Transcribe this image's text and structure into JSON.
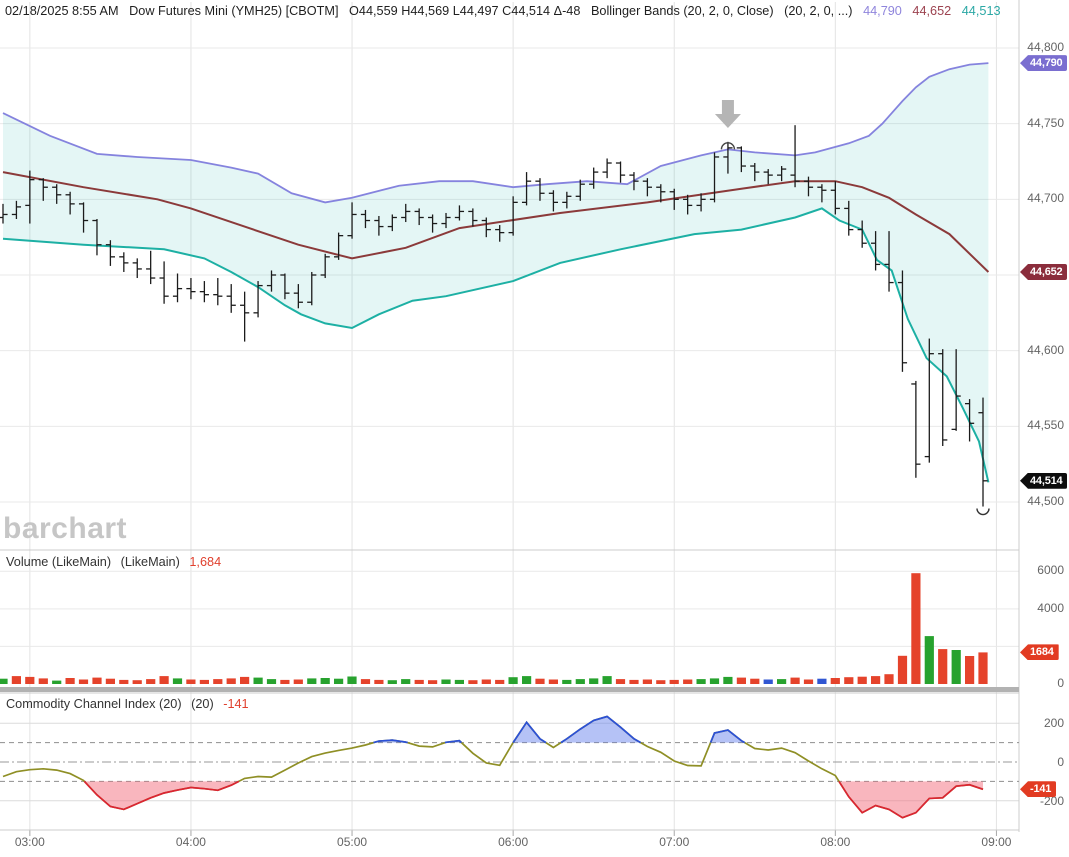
{
  "header": {
    "datetime": "02/18/2025 8:55 AM",
    "symbol_title": "Dow Futures Mini (YMH25) [CBOTM]",
    "ohlc_summary": "O44,559 H44,569 L44,497 C44,514 Δ-48",
    "indicator_name": "Bollinger Bands (20, 2, 0, Close)",
    "indicator_params": "(20, 2, 0, ...)",
    "band_value_upper": "44,790",
    "band_value_middle": "44,652",
    "band_value_lower": "44,513"
  },
  "watermark": "barchart",
  "volume_panel": {
    "label": "Volume (LikeMain)",
    "label2": "(LikeMain)",
    "value": "1,684"
  },
  "cci_panel": {
    "label": "Commodity Channel Index (20)",
    "label2": "(20)",
    "value": "-141"
  },
  "axes": {
    "price_labels": [
      {
        "text": "44,800",
        "value": 44800
      },
      {
        "text": "44,750",
        "value": 44750
      },
      {
        "text": "44,700",
        "value": 44700
      },
      {
        "text": "44,600",
        "value": 44600
      },
      {
        "text": "44,550",
        "value": 44550
      },
      {
        "text": "44,500",
        "value": 44500
      }
    ],
    "volume_labels": [
      {
        "text": "6000",
        "value": 6000
      },
      {
        "text": "4000",
        "value": 4000
      },
      {
        "text": "0",
        "value": 0
      }
    ],
    "cci_labels": [
      {
        "text": "200",
        "value": 200
      },
      {
        "text": "0",
        "value": 0
      },
      {
        "text": "-200",
        "value": -200
      }
    ],
    "time_labels": [
      "03:00",
      "04:00",
      "05:00",
      "06:00",
      "07:00",
      "08:00",
      "09:00"
    ]
  },
  "badges": [
    {
      "name": "bb-upper-badge",
      "text": "44,790",
      "bg": "#7a6ed0",
      "panel": "price",
      "value": 44790
    },
    {
      "name": "bb-middle-badge",
      "text": "44,652",
      "bg": "#8b2d3c",
      "panel": "price",
      "value": 44652
    },
    {
      "name": "last-price-badge",
      "text": "44,514",
      "bg": "#0d0d0d",
      "panel": "price",
      "value": 44514
    },
    {
      "name": "volume-badge",
      "text": "1684",
      "bg": "#e23b22",
      "panel": "vol",
      "value": 1684
    },
    {
      "name": "cci-badge",
      "text": "-141",
      "bg": "#e23b22",
      "panel": "cci",
      "value": -141
    }
  ],
  "chart_data": {
    "type": "bar",
    "subtype": "ohlc-multi-panel",
    "title": "Dow Futures Mini (YMH25) [CBOTM] 5-minute bars with Bollinger Bands (20,2,0), Volume, CCI(20)",
    "time_start": "02:50",
    "interval_minutes": 5,
    "price_axis_range": [
      44480,
      44815
    ],
    "price_gridlines": [
      44800,
      44750,
      44700,
      44650,
      44600,
      44550,
      44500
    ],
    "volume_gridlines": [
      6000,
      4000,
      2000
    ],
    "ohlc": [
      [
        44688,
        44697,
        44684,
        44690
      ],
      [
        44690,
        44699,
        44687,
        44695
      ],
      [
        44696,
        44719,
        44684,
        44713
      ],
      [
        44713,
        44714,
        44699,
        44708
      ],
      [
        44708,
        44710,
        44697,
        44703
      ],
      [
        44703,
        44705,
        44690,
        44697
      ],
      [
        44697,
        44698,
        44678,
        44686
      ],
      [
        44686,
        44687,
        44663,
        44670
      ],
      [
        44670,
        44673,
        44656,
        44662
      ],
      [
        44662,
        44665,
        44652,
        44658
      ],
      [
        44658,
        44661,
        44648,
        44654
      ],
      [
        44654,
        44666,
        44644,
        44648
      ],
      [
        44648,
        44659,
        44631,
        44636
      ],
      [
        44636,
        44651,
        44632,
        44641
      ],
      [
        44641,
        44648,
        44634,
        44639
      ],
      [
        44639,
        44646,
        44632,
        44637
      ],
      [
        44637,
        44648,
        44630,
        44636
      ],
      [
        44636,
        44644,
        44625,
        44630
      ],
      [
        44630,
        44639,
        44606,
        44625
      ],
      [
        44625,
        44646,
        44622,
        44643
      ],
      [
        44643,
        44653,
        44639,
        44650
      ],
      [
        44650,
        44651,
        44634,
        44638
      ],
      [
        44638,
        44644,
        44628,
        44632
      ],
      [
        44632,
        44652,
        44630,
        44650
      ],
      [
        44650,
        44664,
        44648,
        44662
      ],
      [
        44662,
        44678,
        44660,
        44676
      ],
      [
        44676,
        44698,
        44674,
        44690
      ],
      [
        44690,
        44693,
        44681,
        44686
      ],
      [
        44686,
        44689,
        44676,
        44682
      ],
      [
        44682,
        44690,
        44679,
        44688
      ],
      [
        44688,
        44697,
        44685,
        44692
      ],
      [
        44692,
        44694,
        44683,
        44688
      ],
      [
        44688,
        44690,
        44678,
        44684
      ],
      [
        44684,
        44691,
        44681,
        44688
      ],
      [
        44688,
        44696,
        44686,
        44692
      ],
      [
        44692,
        44694,
        44682,
        44686
      ],
      [
        44686,
        44688,
        44675,
        44680
      ],
      [
        44680,
        44683,
        44672,
        44678
      ],
      [
        44678,
        44702,
        44676,
        44698
      ],
      [
        44698,
        44718,
        44696,
        44712
      ],
      [
        44712,
        44714,
        44699,
        44704
      ],
      [
        44704,
        44706,
        44692,
        44698
      ],
      [
        44698,
        44705,
        44694,
        44702
      ],
      [
        44702,
        44713,
        44699,
        44710
      ],
      [
        44710,
        44721,
        44707,
        44718
      ],
      [
        44718,
        44727,
        44714,
        44724
      ],
      [
        44724,
        44725,
        44711,
        44716
      ],
      [
        44716,
        44718,
        44706,
        44712
      ],
      [
        44712,
        44714,
        44702,
        44708
      ],
      [
        44708,
        44710,
        44698,
        44705
      ],
      [
        44705,
        44707,
        44693,
        44700
      ],
      [
        44700,
        44703,
        44690,
        44696
      ],
      [
        44696,
        44704,
        44692,
        44700
      ],
      [
        44700,
        44731,
        44698,
        44728
      ],
      [
        44728,
        44738,
        44717,
        44734
      ],
      [
        44734,
        44735,
        44718,
        44722
      ],
      [
        44722,
        44724,
        44712,
        44718
      ],
      [
        44718,
        44720,
        44710,
        44716
      ],
      [
        44716,
        44722,
        44712,
        44720
      ],
      [
        44716,
        44749,
        44708,
        44712
      ],
      [
        44712,
        44715,
        44702,
        44708
      ],
      [
        44708,
        44710,
        44698,
        44706
      ],
      [
        44706,
        44712,
        44690,
        44694
      ],
      [
        44694,
        44699,
        44676,
        44680
      ],
      [
        44680,
        44686,
        44668,
        44671
      ],
      [
        44671,
        44679,
        44653,
        44657
      ],
      [
        44657,
        44679,
        44639,
        44645
      ],
      [
        44645,
        44653,
        44586,
        44592
      ],
      [
        44578,
        44580,
        44516,
        44525
      ],
      [
        44530,
        44608,
        44526,
        44598
      ],
      [
        44598,
        44601,
        44537,
        44541
      ],
      [
        44548,
        44601,
        44547,
        44570
      ],
      [
        44565,
        44568,
        44540,
        44552
      ],
      [
        44559,
        44569,
        44497,
        44514
      ]
    ],
    "bollinger": {
      "upper": [
        [
          0,
          44757
        ],
        [
          3.5,
          44742
        ],
        [
          7,
          44730
        ],
        [
          10,
          44728
        ],
        [
          14,
          44726
        ],
        [
          17,
          44721
        ],
        [
          19,
          44717
        ],
        [
          21.5,
          44704
        ],
        [
          24,
          44698
        ],
        [
          26,
          44701
        ],
        [
          29.5,
          44709
        ],
        [
          32.5,
          44712
        ],
        [
          35,
          44712
        ],
        [
          38,
          44708
        ],
        [
          40.5,
          44710
        ],
        [
          43.5,
          44712
        ],
        [
          46.5,
          44710
        ],
        [
          49,
          44722
        ],
        [
          52,
          44729
        ],
        [
          54,
          44733
        ],
        [
          56,
          44731
        ],
        [
          59,
          44729
        ],
        [
          60.5,
          44731
        ],
        [
          63,
          44737
        ],
        [
          64.5,
          44742
        ],
        [
          65.5,
          44750
        ],
        [
          67,
          44765
        ],
        [
          68,
          44774
        ],
        [
          69,
          44781
        ],
        [
          70.5,
          44786
        ],
        [
          72,
          44789
        ],
        [
          73.4,
          44790
        ]
      ],
      "middle": [
        [
          0,
          44718
        ],
        [
          6,
          44708
        ],
        [
          11.5,
          44700
        ],
        [
          14,
          44694
        ],
        [
          18,
          44682
        ],
        [
          22,
          44670
        ],
        [
          26,
          44661
        ],
        [
          30,
          44668
        ],
        [
          34,
          44681
        ],
        [
          41.5,
          44691
        ],
        [
          48,
          44698
        ],
        [
          55,
          44707
        ],
        [
          59,
          44712
        ],
        [
          62,
          44712
        ],
        [
          64,
          44708
        ],
        [
          66,
          44701
        ],
        [
          68,
          44690
        ],
        [
          70.5,
          44677
        ],
        [
          73.4,
          44652
        ]
      ],
      "lower": [
        [
          0,
          44674
        ],
        [
          6,
          44670
        ],
        [
          12,
          44667
        ],
        [
          15,
          44661
        ],
        [
          17,
          44652
        ],
        [
          19,
          44642
        ],
        [
          21,
          44630
        ],
        [
          22.2,
          44624
        ],
        [
          24,
          44618
        ],
        [
          26,
          44615
        ],
        [
          28,
          44624
        ],
        [
          30.5,
          44633
        ],
        [
          33,
          44636
        ],
        [
          38,
          44646
        ],
        [
          41.5,
          44658
        ],
        [
          46,
          44667
        ],
        [
          51.5,
          44677
        ],
        [
          55,
          44680
        ],
        [
          59,
          44688
        ],
        [
          61,
          44694
        ],
        [
          62.3,
          44686
        ],
        [
          64,
          44680
        ],
        [
          65.1,
          44660
        ],
        [
          66.2,
          44653
        ],
        [
          67.4,
          44621
        ],
        [
          68.8,
          44595
        ],
        [
          70.3,
          44583
        ],
        [
          71.5,
          44562
        ],
        [
          72.7,
          44540
        ],
        [
          73.4,
          44513
        ]
      ]
    },
    "volume": {
      "values": [
        280,
        420,
        380,
        300,
        180,
        320,
        240,
        340,
        280,
        220,
        200,
        260,
        420,
        300,
        240,
        220,
        260,
        300,
        380,
        340,
        260,
        220,
        240,
        300,
        320,
        280,
        400,
        260,
        220,
        200,
        260,
        220,
        200,
        240,
        220,
        200,
        240,
        220,
        360,
        420,
        280,
        240,
        220,
        260,
        300,
        420,
        260,
        220,
        240,
        200,
        220,
        240,
        260,
        300,
        380,
        340,
        280,
        240,
        260,
        340,
        240,
        280,
        320,
        360,
        390,
        420,
        520,
        1500,
        5900,
        2550,
        1860,
        1810,
        1490,
        1684
      ],
      "colors": [
        "g",
        "r",
        "r",
        "r",
        "g",
        "r",
        "r",
        "r",
        "r",
        "r",
        "r",
        "r",
        "r",
        "g",
        "r",
        "r",
        "r",
        "r",
        "r",
        "g",
        "g",
        "r",
        "r",
        "g",
        "g",
        "g",
        "g",
        "r",
        "r",
        "g",
        "g",
        "r",
        "r",
        "g",
        "g",
        "r",
        "r",
        "r",
        "g",
        "g",
        "r",
        "r",
        "g",
        "g",
        "g",
        "g",
        "r",
        "r",
        "r",
        "r",
        "r",
        "r",
        "g",
        "g",
        "g",
        "r",
        "r",
        "b",
        "g",
        "r",
        "r",
        "b",
        "r",
        "r",
        "r",
        "r",
        "r",
        "r",
        "r",
        "g",
        "r",
        "g",
        "r",
        "r"
      ],
      "axis_range": [
        0,
        7000
      ]
    },
    "cci": {
      "values": [
        -75,
        -50,
        -40,
        -35,
        -42,
        -60,
        -95,
        -170,
        -230,
        -245,
        -215,
        -185,
        -160,
        -145,
        -132,
        -138,
        -146,
        -120,
        -85,
        -75,
        -78,
        -42,
        -5,
        28,
        46,
        60,
        72,
        88,
        108,
        113,
        103,
        82,
        78,
        102,
        110,
        45,
        -5,
        -17,
        100,
        205,
        120,
        75,
        120,
        170,
        215,
        235,
        180,
        120,
        80,
        50,
        5,
        -18,
        -20,
        150,
        165,
        110,
        70,
        62,
        72,
        48,
        5,
        -35,
        -70,
        -180,
        -262,
        -225,
        -245,
        -288,
        -262,
        -188,
        -185,
        -125,
        -118,
        -141
      ],
      "overbought": 100,
      "oversold": -100,
      "axis_range": [
        -320,
        280
      ]
    },
    "annotations": {
      "down_arrow_bar": 54,
      "peak_arc_bar": 54,
      "low_arc_bar": 73
    },
    "colors": {
      "band_upper": "#8583de",
      "band_middle": "#8b3a3a",
      "band_lower": "#1db0a4",
      "band_fill": "rgba(32,178,170,0.12)",
      "bar": "#1b1b1b",
      "vol_up": "#27a22e",
      "vol_down": "#e5432b",
      "vol_unch": "#3056d2",
      "cci_line": "#8f8f25",
      "cci_high": "#2b50d8",
      "cci_low": "#dc2333",
      "cci_fill_high": "rgba(90,120,235,0.45)",
      "cci_fill_low": "rgba(244,110,125,0.5)",
      "annotation_arrow": "#b5b5b5"
    }
  }
}
